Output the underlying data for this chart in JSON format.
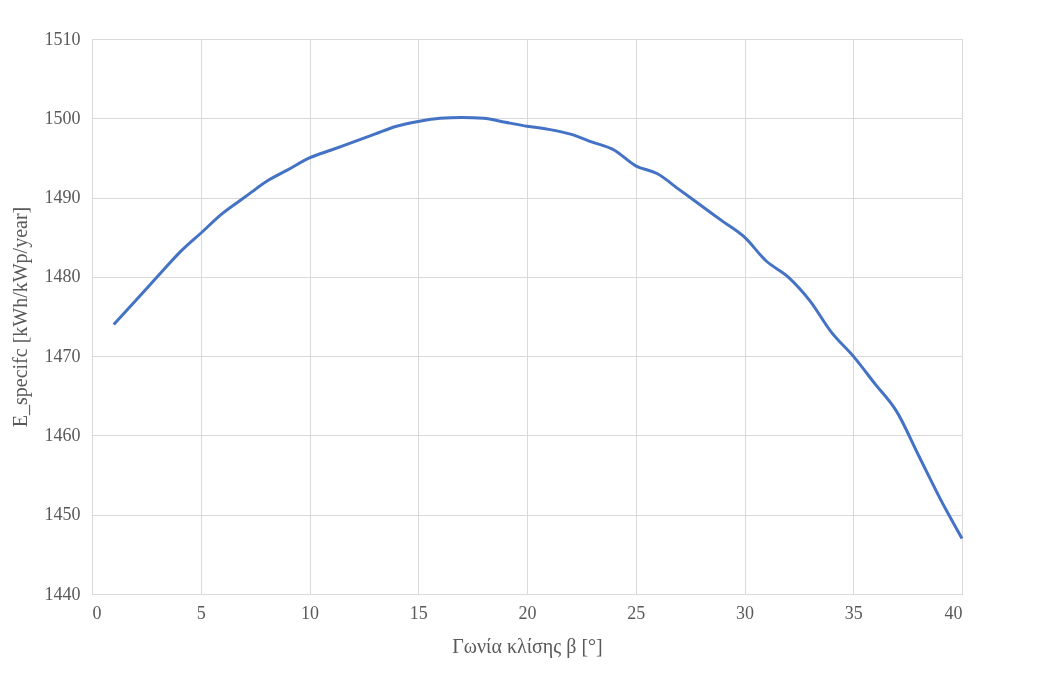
{
  "chart_data": {
    "type": "line",
    "xlabel": "Γωνία κλίσης β [°]",
    "ylabel": "E_specifc [kWh/kWp/year]",
    "x": [
      1,
      2,
      3,
      4,
      5,
      6,
      7,
      8,
      9,
      10,
      11,
      12,
      13,
      14,
      15,
      16,
      17,
      18,
      19,
      20,
      21,
      22,
      23,
      24,
      25,
      26,
      27,
      28,
      29,
      30,
      31,
      32,
      33,
      34,
      35,
      36,
      37,
      38,
      39,
      40
    ],
    "series": [
      {
        "color": "#4472c4",
        "values": [
          1474,
          1477,
          1480,
          1483,
          1485.5,
          1488,
          1490,
          1492,
          1493.5,
          1495,
          1496,
          1497,
          1498,
          1499,
          1499.6,
          1500,
          1500.1,
          1500,
          1499.5,
          1499,
          1498.6,
          1498,
          1497,
          1496,
          1494,
          1493,
          1491,
          1489,
          1487,
          1485,
          1482,
          1480,
          1477,
          1473,
          1470,
          1466.5,
          1463,
          1457.5,
          1452,
          1447
        ]
      }
    ],
    "xlim": [
      0,
      40
    ],
    "xticks": [
      0,
      5,
      10,
      15,
      20,
      25,
      30,
      35,
      40
    ],
    "ylim": [
      1440,
      1510
    ],
    "yticks": [
      1440,
      1450,
      1460,
      1470,
      1480,
      1490,
      1500,
      1510
    ],
    "grid": true,
    "marker": "none",
    "line_style": "solid"
  }
}
